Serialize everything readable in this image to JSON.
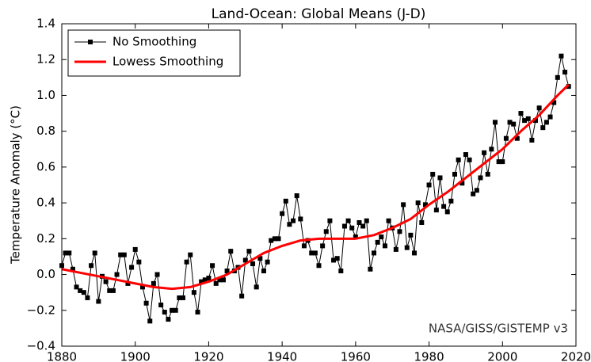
{
  "chart_data": {
    "type": "line",
    "title": "Land-Ocean: Global Means (J-D)",
    "y_label": "Temperature Anomaly (°C)",
    "annotation": "NASA/GISS/GISTEMP v3",
    "legend": "upper left",
    "grid": false,
    "xlim": [
      1880,
      2020
    ],
    "xticks": [
      1880,
      1900,
      1920,
      1940,
      1960,
      1980,
      2000,
      2020
    ],
    "ylim": [
      -0.4,
      1.4
    ],
    "yticks": [
      {
        "value": -0.4,
        "label": "−0.4"
      },
      {
        "value": -0.2,
        "label": "−0.2"
      },
      {
        "value": 0,
        "label": "0.0"
      },
      0.2,
      0.4,
      0.6,
      0.8,
      {
        "value": 1,
        "label": "1.0"
      },
      1.2,
      1.4
    ],
    "series": [
      {
        "name": "No Smoothing",
        "color": "#000000",
        "marker": "square",
        "x": [
          1880,
          1881,
          1882,
          1883,
          1884,
          1885,
          1886,
          1887,
          1888,
          1889,
          1890,
          1891,
          1892,
          1893,
          1894,
          1895,
          1896,
          1897,
          1898,
          1899,
          1900,
          1901,
          1902,
          1903,
          1904,
          1905,
          1906,
          1907,
          1908,
          1909,
          1910,
          1911,
          1912,
          1913,
          1914,
          1915,
          1916,
          1917,
          1918,
          1919,
          1920,
          1921,
          1922,
          1923,
          1924,
          1925,
          1926,
          1927,
          1928,
          1929,
          1930,
          1931,
          1932,
          1933,
          1934,
          1935,
          1936,
          1937,
          1938,
          1939,
          1940,
          1941,
          1942,
          1943,
          1944,
          1945,
          1946,
          1947,
          1948,
          1949,
          1950,
          1951,
          1952,
          1953,
          1954,
          1955,
          1956,
          1957,
          1958,
          1959,
          1960,
          1961,
          1962,
          1963,
          1964,
          1965,
          1966,
          1967,
          1968,
          1969,
          1970,
          1971,
          1972,
          1973,
          1974,
          1975,
          1976,
          1977,
          1978,
          1979,
          1980,
          1981,
          1982,
          1983,
          1984,
          1985,
          1986,
          1987,
          1988,
          1989,
          1990,
          1991,
          1992,
          1993,
          1994,
          1995,
          1996,
          1997,
          1998,
          1999,
          2000,
          2001,
          2002,
          2003,
          2004,
          2005,
          2006,
          2007,
          2008,
          2009,
          2010,
          2011,
          2012,
          2013,
          2014,
          2015,
          2016,
          2017,
          2018
        ],
        "values": [
          0.05,
          0.12,
          0.12,
          0.03,
          -0.07,
          -0.09,
          -0.1,
          -0.13,
          0.05,
          0.12,
          -0.15,
          -0.01,
          -0.04,
          -0.09,
          -0.09,
          0.0,
          0.11,
          0.11,
          -0.05,
          0.04,
          0.14,
          0.07,
          -0.07,
          -0.16,
          -0.26,
          -0.05,
          0.0,
          -0.17,
          -0.21,
          -0.25,
          -0.2,
          -0.2,
          -0.13,
          -0.13,
          0.07,
          0.11,
          -0.1,
          -0.21,
          -0.04,
          -0.03,
          -0.02,
          0.05,
          -0.05,
          -0.03,
          -0.03,
          0.02,
          0.13,
          0.02,
          0.04,
          -0.12,
          0.08,
          0.13,
          0.06,
          -0.07,
          0.09,
          0.02,
          0.07,
          0.19,
          0.2,
          0.2,
          0.34,
          0.41,
          0.28,
          0.3,
          0.44,
          0.31,
          0.16,
          0.19,
          0.12,
          0.12,
          0.05,
          0.16,
          0.24,
          0.3,
          0.08,
          0.09,
          0.02,
          0.27,
          0.3,
          0.26,
          0.21,
          0.29,
          0.27,
          0.3,
          0.03,
          0.12,
          0.18,
          0.21,
          0.16,
          0.3,
          0.26,
          0.14,
          0.24,
          0.39,
          0.15,
          0.22,
          0.12,
          0.4,
          0.29,
          0.39,
          0.5,
          0.56,
          0.36,
          0.54,
          0.38,
          0.35,
          0.41,
          0.56,
          0.64,
          0.51,
          0.67,
          0.64,
          0.45,
          0.47,
          0.54,
          0.68,
          0.56,
          0.7,
          0.85,
          0.63,
          0.63,
          0.76,
          0.85,
          0.84,
          0.76,
          0.9,
          0.86,
          0.87,
          0.75,
          0.86,
          0.93,
          0.82,
          0.85,
          0.88,
          0.96,
          1.1,
          1.22,
          1.13,
          1.05
        ]
      },
      {
        "name": "Lowess Smoothing",
        "color": "#ff0000",
        "x": [
          1880,
          1885,
          1890,
          1895,
          1900,
          1905,
          1910,
          1915,
          1920,
          1925,
          1930,
          1935,
          1940,
          1945,
          1950,
          1955,
          1960,
          1965,
          1970,
          1975,
          1980,
          1985,
          1990,
          1995,
          2000,
          2005,
          2010,
          2015,
          2018
        ],
        "values": [
          0.03,
          0.01,
          -0.01,
          -0.03,
          -0.05,
          -0.07,
          -0.08,
          -0.07,
          -0.04,
          0.0,
          0.06,
          0.12,
          0.16,
          0.19,
          0.2,
          0.2,
          0.2,
          0.22,
          0.26,
          0.31,
          0.39,
          0.46,
          0.54,
          0.62,
          0.7,
          0.8,
          0.89,
          1.0,
          1.06
        ]
      }
    ]
  }
}
